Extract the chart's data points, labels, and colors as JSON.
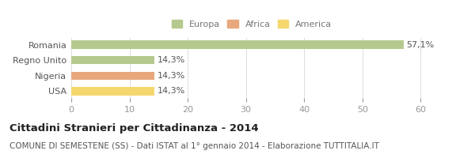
{
  "categories": [
    "USA",
    "Nigeria",
    "Regno Unito",
    "Romania"
  ],
  "values": [
    14.3,
    14.3,
    14.3,
    57.1
  ],
  "bar_colors": [
    "#f5d76e",
    "#e8a87c",
    "#b5c98e",
    "#b5c98e"
  ],
  "bar_labels": [
    "14,3%",
    "14,3%",
    "14,3%",
    "57,1%"
  ],
  "legend_labels": [
    "Europa",
    "Africa",
    "America"
  ],
  "legend_colors": [
    "#b5c98e",
    "#e8a87c",
    "#f5d76e"
  ],
  "xlim": [
    0,
    62
  ],
  "xticks": [
    0,
    10,
    20,
    30,
    40,
    50,
    60
  ],
  "title": "Cittadini Stranieri per Cittadinanza - 2014",
  "subtitle": "COMUNE DI SEMESTENE (SS) - Dati ISTAT al 1° gennaio 2014 - Elaborazione TUTTITALIA.IT",
  "title_fontsize": 9.5,
  "subtitle_fontsize": 7.5,
  "label_fontsize": 8,
  "tick_fontsize": 8,
  "bg_color": "#ffffff",
  "bar_height": 0.52
}
